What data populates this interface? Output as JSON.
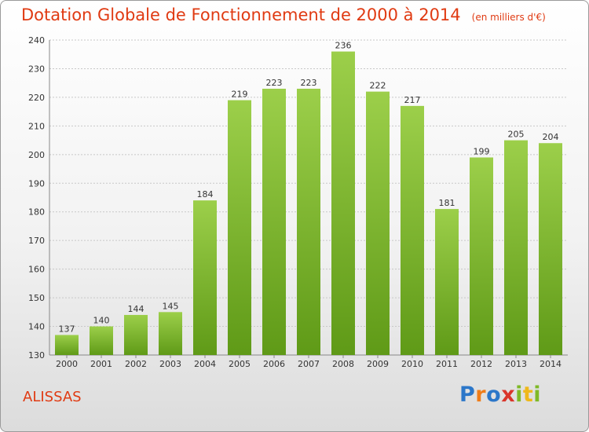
{
  "chart_data": {
    "type": "bar",
    "title": "Dotation Globale de Fonctionnement de 2000 à 2014",
    "subtitle": "(en milliers d'€)",
    "categories": [
      "2000",
      "2001",
      "2002",
      "2003",
      "2004",
      "2005",
      "2006",
      "2007",
      "2008",
      "2009",
      "2010",
      "2011",
      "2012",
      "2013",
      "2014"
    ],
    "values": [
      137,
      140,
      144,
      145,
      184,
      219,
      223,
      223,
      236,
      222,
      217,
      181,
      199,
      205,
      204
    ],
    "ylim": [
      130,
      240
    ],
    "yticks": [
      130,
      140,
      150,
      160,
      170,
      180,
      190,
      200,
      210,
      220,
      230,
      240
    ],
    "grid": true,
    "bar_color": "#7ab52c",
    "xlabel": "",
    "ylabel": ""
  },
  "commune": "ALISSAS",
  "logo": "Proxiti",
  "colors": {
    "title": "#e03a12",
    "grid": "#c8c8c8"
  }
}
